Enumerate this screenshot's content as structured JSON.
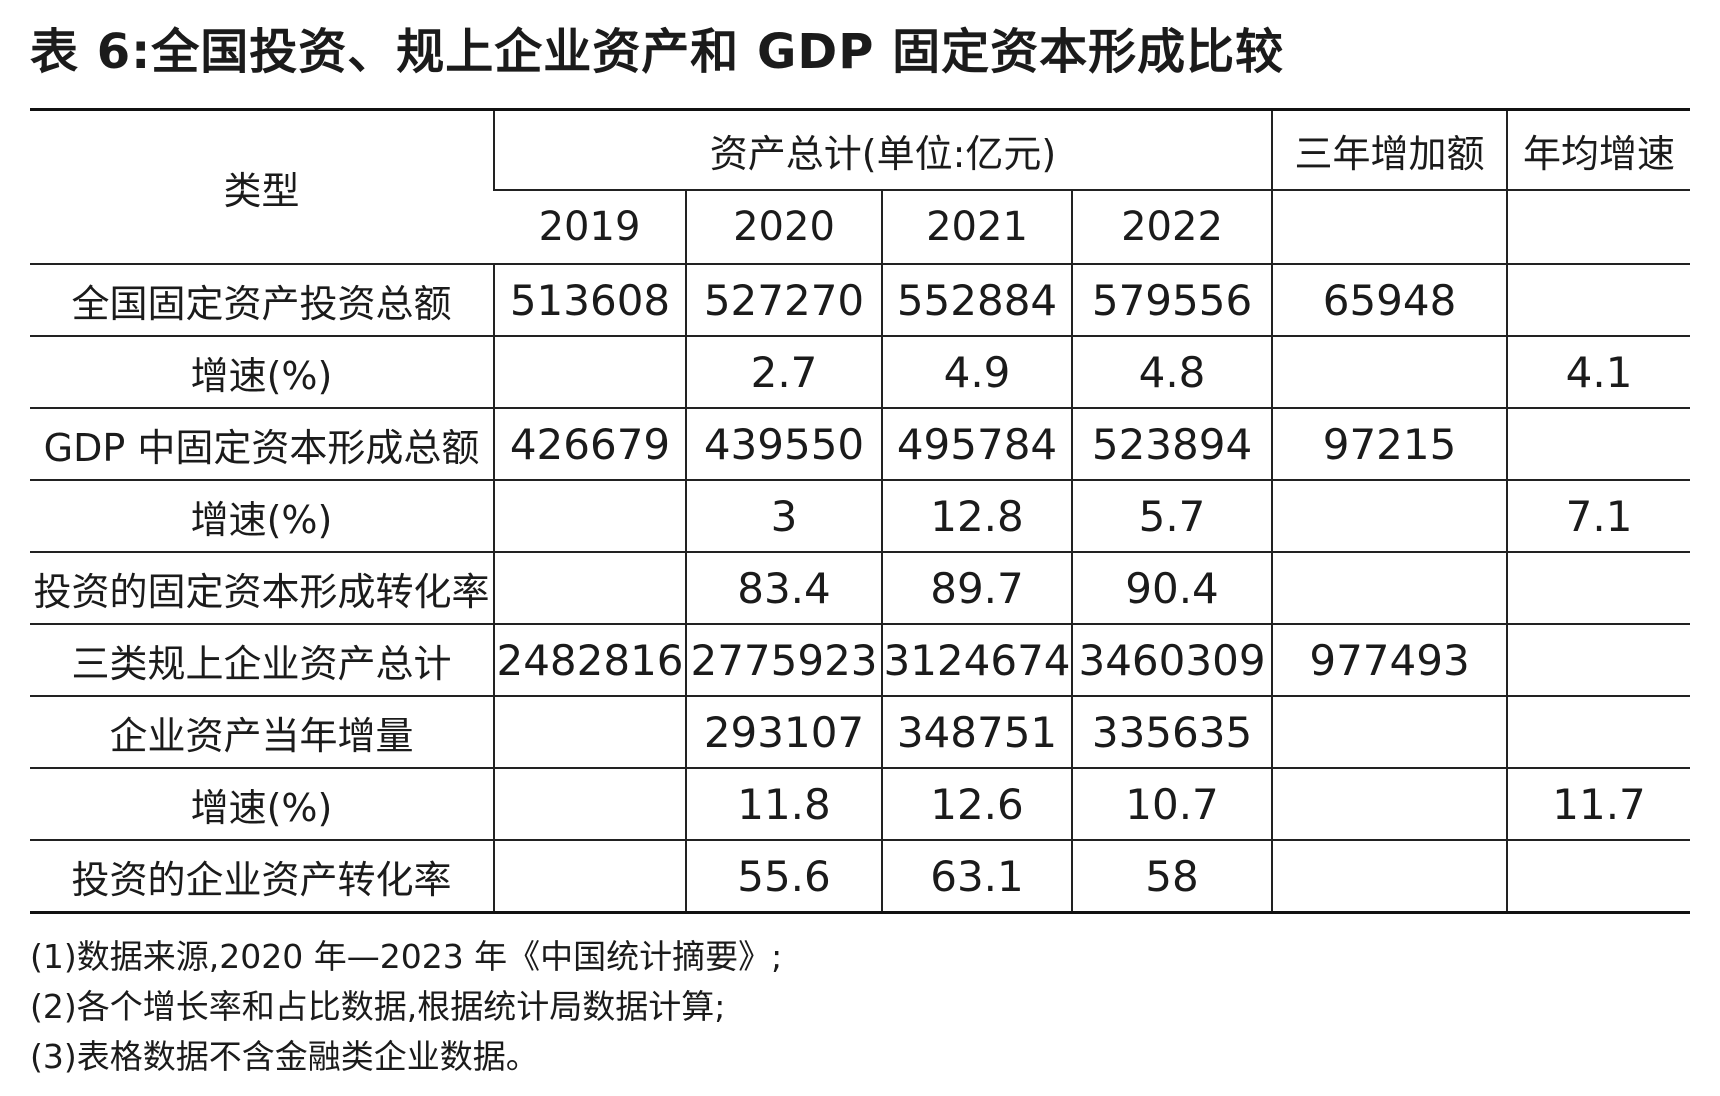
{
  "title": "表 6:全国投资、规上企业资产和 GDP 固定资本形成比较",
  "table": {
    "type_header": "类型",
    "asset_header": "资产总计(单位:亿元)",
    "increase_header": "三年增加额",
    "growth_header": "年均增速",
    "years": [
      "2019",
      "2020",
      "2021",
      "2022"
    ],
    "rows": [
      {
        "label": "全国固定资产投资总额",
        "y2019": "513608",
        "y2020": "527270",
        "y2021": "552884",
        "y2022": "579556",
        "increase": "65948",
        "growth": ""
      },
      {
        "label": "增速(%)",
        "y2019": "",
        "y2020": "2.7",
        "y2021": "4.9",
        "y2022": "4.8",
        "increase": "",
        "growth": "4.1"
      },
      {
        "label": "GDP 中固定资本形成总额",
        "y2019": "426679",
        "y2020": "439550",
        "y2021": "495784",
        "y2022": "523894",
        "increase": "97215",
        "growth": ""
      },
      {
        "label": "增速(%)",
        "y2019": "",
        "y2020": "3",
        "y2021": "12.8",
        "y2022": "5.7",
        "increase": "",
        "growth": "7.1"
      },
      {
        "label": "投资的固定资本形成转化率",
        "y2019": "",
        "y2020": "83.4",
        "y2021": "89.7",
        "y2022": "90.4",
        "increase": "",
        "growth": ""
      },
      {
        "label": "三类规上企业资产总计",
        "y2019": "2482816",
        "y2020": "2775923",
        "y2021": "3124674",
        "y2022": "3460309",
        "increase": "977493",
        "growth": ""
      },
      {
        "label": "企业资产当年增量",
        "y2019": "",
        "y2020": "293107",
        "y2021": "348751",
        "y2022": "335635",
        "increase": "",
        "growth": ""
      },
      {
        "label": "增速(%)",
        "y2019": "",
        "y2020": "11.8",
        "y2021": "12.6",
        "y2022": "10.7",
        "increase": "",
        "growth": "11.7"
      },
      {
        "label": "投资的企业资产转化率",
        "y2019": "",
        "y2020": "55.6",
        "y2021": "63.1",
        "y2022": "58",
        "increase": "",
        "growth": ""
      }
    ]
  },
  "notes": [
    "(1)数据来源,2020 年—2023 年《中国统计摘要》;",
    "(2)各个增长率和占比数据,根据统计局数据计算;",
    "(3)表格数据不含金融类企业数据。"
  ]
}
